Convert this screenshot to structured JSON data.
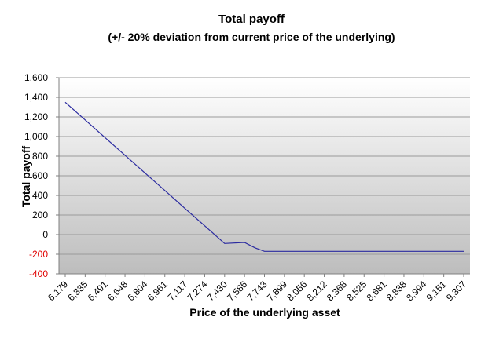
{
  "chart_data": {
    "type": "line",
    "title": "Total payoff",
    "subtitle": "(+/- 20% deviation from current price of the underlying)",
    "xlabel": "Price of the underlying asset",
    "ylabel": "Total payoff",
    "ylim": [
      -400,
      1600
    ],
    "yticks": [
      -400,
      -200,
      0,
      200,
      400,
      600,
      800,
      1000,
      1200,
      1400,
      1600
    ],
    "ytick_labels": [
      "-400",
      "-200",
      "0",
      "200",
      "400",
      "600",
      "800",
      "1,000",
      "1,200",
      "1,400",
      "1,600"
    ],
    "categories": [
      "6,179",
      "6,335",
      "6,491",
      "6,648",
      "6,804",
      "6,961",
      "7,117",
      "7,274",
      "7,430",
      "7,586",
      "7,743",
      "7,899",
      "8,056",
      "8,212",
      "8,368",
      "8,525",
      "8,681",
      "8,838",
      "8,994",
      "9,151",
      "9,307"
    ],
    "series": [
      {
        "x": [
          6179,
          6335,
          6491,
          6648,
          6804,
          6961,
          7117,
          7274,
          7430,
          7586,
          7670,
          7743,
          7899,
          8056,
          8212,
          8368,
          8525,
          8681,
          8838,
          8994,
          9151,
          9307
        ],
        "values": [
          1350,
          1170,
          990,
          810,
          630,
          450,
          270,
          90,
          -90,
          -80,
          -135,
          -170,
          -170,
          -170,
          -170,
          -170,
          -170,
          -170,
          -170,
          -170,
          -170,
          -170
        ]
      }
    ],
    "grid": true,
    "legend": "none",
    "colors": {
      "line": "#2B2BA0",
      "grid": "#9A9A9A",
      "negative_tick": "#E00000",
      "positive_tick": "#000000",
      "plot_bg_top": "#FFFFFF",
      "plot_bg_bottom": "#BDBDBD"
    }
  }
}
